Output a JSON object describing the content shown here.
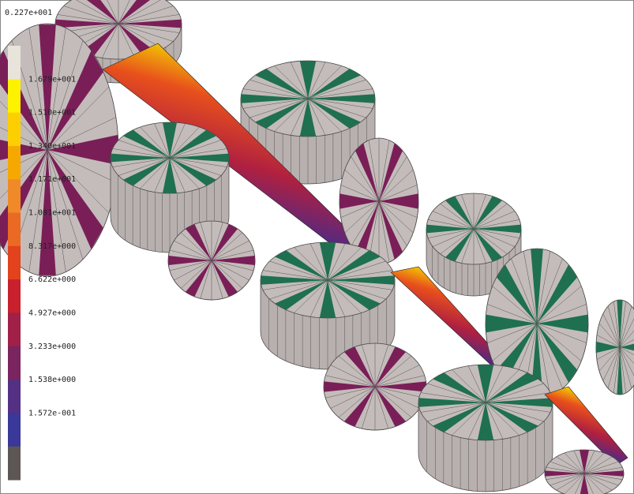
{
  "legend": {
    "title": "0.227e+001",
    "labels": [
      "1.679e+001",
      "1.510e+001",
      "1.340e+001",
      "1.171e+001",
      "1.001e+001",
      "8.317e+000",
      "6.622e+000",
      "4.927e+000",
      "3.233e+000",
      "1.538e+000",
      "1.572e-001"
    ],
    "colors": [
      "#e8e4dc",
      "#fff200",
      "#fcd000",
      "#f6a800",
      "#f08a28",
      "#ea6a24",
      "#e2421c",
      "#c8202c",
      "#a02048",
      "#7a2460",
      "#543084",
      "#3a3898",
      "#5c5654"
    ]
  }
}
